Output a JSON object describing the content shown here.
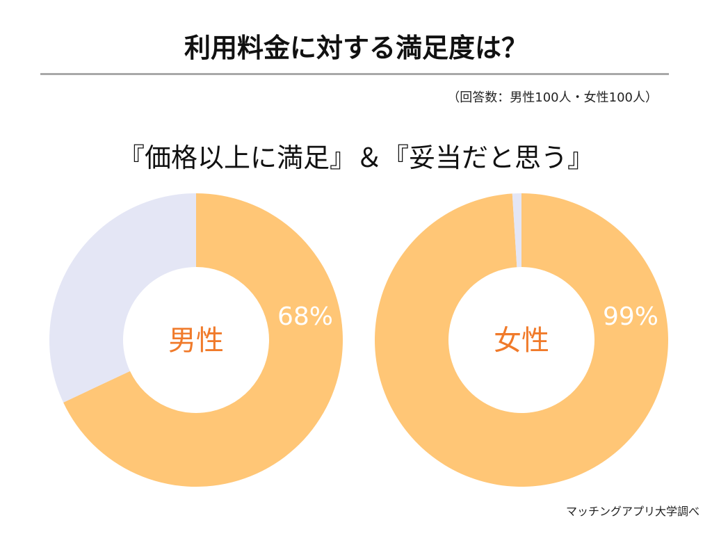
{
  "title": "利用料金に対する満足度は？",
  "note": "（回答数：男性100人・女性100人）",
  "subtitle": "『価格以上に満足』＆『妥当だと思う』",
  "source": "マッチングアプリ大学調べ",
  "colors": {
    "satisfied": "#FFC676",
    "other": "#E4E6F5",
    "center_label": "#F07A2A",
    "value_label": "#FFFFFF"
  },
  "chart_data": [
    {
      "type": "pie",
      "donut": true,
      "center_label": "男性",
      "value_label": "68%",
      "values": [
        68,
        32
      ]
    },
    {
      "type": "pie",
      "donut": true,
      "center_label": "女性",
      "value_label": "99%",
      "values": [
        99,
        1
      ]
    }
  ]
}
